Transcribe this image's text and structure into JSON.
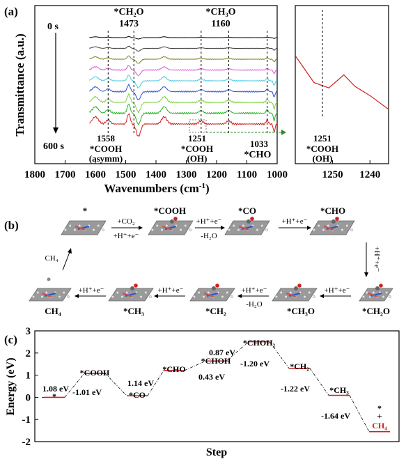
{
  "panel_a": {
    "label": "(a)",
    "time_start": "0 s",
    "time_end": "600 s",
    "peak_ch2o_species": "*CH₂O",
    "peak_ch2o_value": "1473",
    "peak_ch3o_species": "*CH₃O",
    "peak_ch3o_value": "1160",
    "peak_cooh_asym_value": "1558",
    "peak_cooh_asym_species": "*COOH",
    "peak_cooh_asym_mode": "(asymm)",
    "peak_cooh_oh_value": "1251",
    "peak_cooh_oh_species": "*COOH",
    "peak_cooh_oh_mode": "(OH)",
    "peak_cho_value": "1033",
    "peak_cho_species": "*CHO",
    "inset_value": "1251",
    "inset_species": "*COOH",
    "inset_mode": "(OH)",
    "colors": [
      "#000000",
      "#404040",
      "#7a7a1a",
      "#d94fd9",
      "#4fc8e0",
      "#3050d0",
      "#7fd040",
      "#20b020",
      "#d02020"
    ],
    "inset_color": "#d02020"
  },
  "panel_b": {
    "label": "(b)",
    "steps": {
      "s1": "*",
      "s2": "*COOH",
      "s3": "*CO",
      "s4": "*CHO",
      "s5": "*CH₂O",
      "s6": "*CH₃O",
      "s7": "*CH₂",
      "s8": "*CH₃",
      "s9": "CH₄"
    },
    "arrows": {
      "a1_top": "+CO₂",
      "a1_bottom": "+H⁺+e⁻",
      "a2_top": "+H⁺+e⁻",
      "a2_bottom": "-H₂O",
      "a3_top": "+H⁺+e⁻",
      "a4_side": "+H⁺+e⁻",
      "a5_top": "+H⁺+e⁻",
      "a6_top": "+H⁺+e⁻",
      "a6_bottom": "-H₂O",
      "a7_top": "+H⁺+e⁻",
      "a8_top": "+H⁺+e⁻",
      "release": "CH₄"
    }
  },
  "panel_c": {
    "label": "(c)",
    "star_label": "*",
    "energy_labels": {
      "e1": "1.08 eV",
      "e2": "-1.01 eV",
      "e3": "1.14 eV",
      "e4": "0.43 eV",
      "e5": "0.87 eV",
      "e6": "-1.20 eV",
      "e7": "-1.22 eV",
      "e8": "-1.64 eV"
    },
    "level_labels": {
      "l0": "*",
      "l1": "*COOH",
      "l2": "*CO",
      "l3": "*CHO",
      "l4": "*CHOH",
      "l5": "*CHOH₂",
      "l6": "*CH₂",
      "l7": "*CH₃",
      "l8_plus": "+",
      "l8": "CH₄"
    }
  },
  "chart_data": [
    {
      "type": "line",
      "xlabel": "Wavenumbers (cm⁻¹)",
      "ylabel": "Transmittance (a.u.)",
      "xlim": [
        1800,
        1000
      ],
      "x_ticks": [
        1800,
        1700,
        1600,
        1500,
        1400,
        1300,
        1200,
        1100,
        1000
      ],
      "reference_lines": [
        1558,
        1473,
        1251,
        1160,
        1033
      ],
      "series_count": 9,
      "legend": "none"
    },
    {
      "type": "line",
      "xlim": [
        1260,
        1235
      ],
      "x_ticks": [
        1250,
        1240
      ],
      "reference_line": 1251,
      "x": [
        1260,
        1255,
        1251,
        1247,
        1244,
        1240,
        1235
      ],
      "y": [
        0.2,
        0.55,
        0.62,
        0.45,
        0.6,
        0.72,
        0.9
      ]
    },
    {
      "type": "line",
      "xlabel": "Step",
      "ylabel": "Energy (eV)",
      "ylim": [
        -2,
        3
      ],
      "y_ticks": [
        -2,
        -1,
        0,
        1,
        2,
        3
      ],
      "levels": [
        {
          "label": "*",
          "energy": 0.0
        },
        {
          "label": "*COOH",
          "energy": 1.08
        },
        {
          "label": "*CO",
          "energy": 0.07
        },
        {
          "label": "*CHO",
          "energy": 1.21
        },
        {
          "label": "*CHOH",
          "energy": 1.64
        },
        {
          "label": "*CHOH₂",
          "energy": 2.51
        },
        {
          "label": "*CH₂",
          "energy": 1.31
        },
        {
          "label": "*CH₃",
          "energy": 0.09
        },
        {
          "label": "CH₄",
          "energy": -1.55
        }
      ]
    }
  ]
}
